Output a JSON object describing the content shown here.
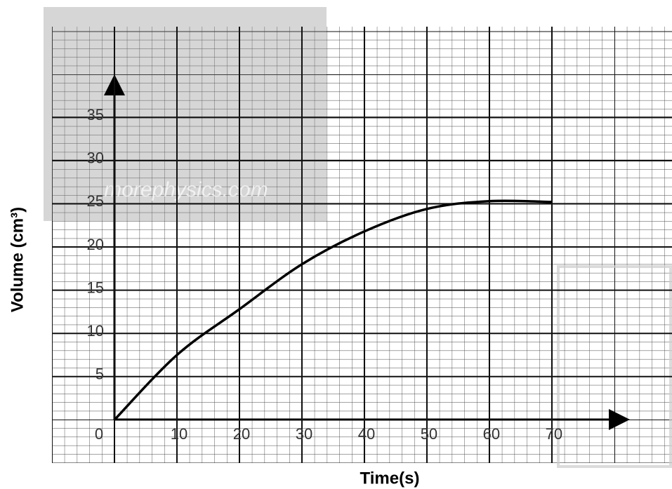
{
  "chart_data": {
    "type": "line",
    "x_label": "Time(s)",
    "y_label": "Volume (cm³)",
    "watermark": "morephysics.com",
    "x": [
      0,
      10,
      20,
      30,
      40,
      50,
      60,
      70
    ],
    "series": [
      {
        "color": "#000000",
        "values": [
          0,
          7.5,
          12.8,
          18,
          21.8,
          24.4,
          25.3,
          25.2
        ]
      }
    ],
    "xlim": [
      -10,
      89
    ],
    "ylim": [
      -5,
      45
    ],
    "xticks": [
      0,
      10,
      20,
      30,
      40,
      50,
      60,
      70
    ],
    "yticks": [
      5,
      10,
      15,
      20,
      25,
      30,
      35
    ],
    "grid": true
  }
}
